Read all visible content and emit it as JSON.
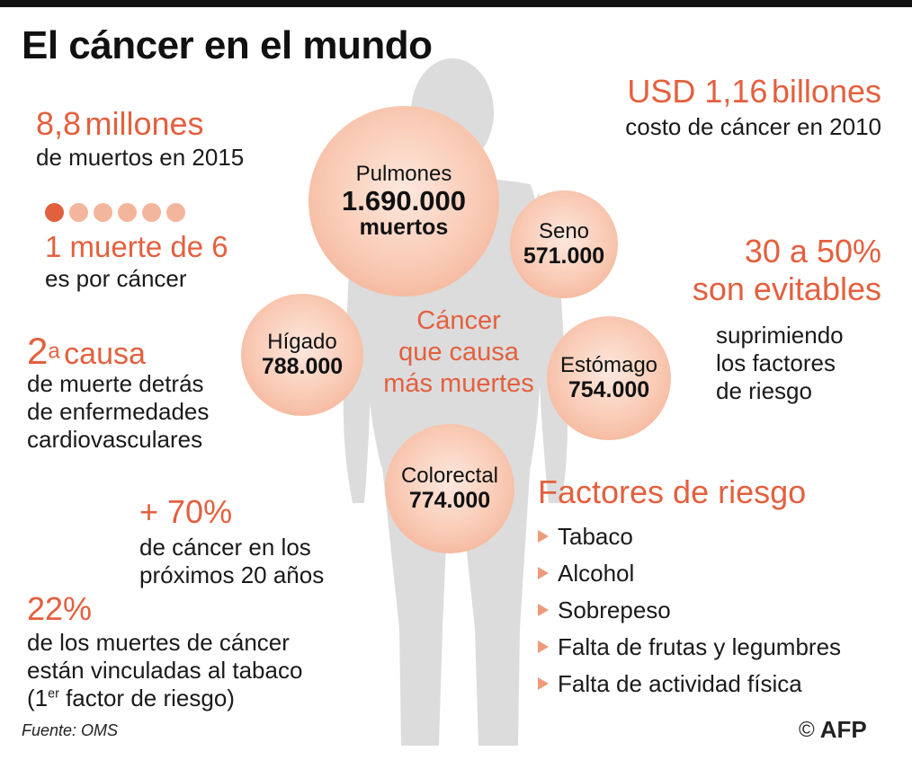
{
  "title": "El cáncer en el mundo",
  "deaths": {
    "value": "8,8",
    "unit": "millones",
    "caption": "de muertos en 2015"
  },
  "one_in_six": {
    "headline": "1 muerte de 6",
    "caption": "es por cáncer",
    "dots_total": 6,
    "dots_highlighted": 1
  },
  "second_cause": {
    "number": "2",
    "sup": "a",
    "word": "causa",
    "caption_lines": [
      "de muerte detrás",
      "de enfermedades",
      "cardiovasculares"
    ]
  },
  "growth": {
    "headline": "+ 70%",
    "caption_lines": [
      "de cáncer en los",
      "próximos 20 años"
    ]
  },
  "tobacco": {
    "headline": "22%",
    "line1": "de los muertes de cáncer",
    "line2": "están vinculadas al tabaco",
    "line3_pre": "(1",
    "line3_sup": "er",
    "line3_post": " factor de riesgo)"
  },
  "cost": {
    "headline": "USD 1,16",
    "unit": "billones",
    "caption": "costo de cáncer en 2010"
  },
  "avoidable": {
    "line1": "30 a 50%",
    "line2": "son evitables",
    "caption_lines": [
      "suprimiendo",
      "los factores",
      "de riesgo"
    ]
  },
  "center_label": [
    "Cáncer",
    "que causa",
    "más muertes"
  ],
  "cancers": {
    "pulmones": {
      "name": "Pulmones",
      "value": "1.690.000",
      "unit": "muertos"
    },
    "seno": {
      "name": "Seno",
      "value": "571.000"
    },
    "higado": {
      "name": "Hígado",
      "value": "788.000"
    },
    "estomago": {
      "name": "Estómago",
      "value": "754.000"
    },
    "colorectal": {
      "name": "Colorectal",
      "value": "774.000"
    }
  },
  "risk_factors": {
    "title": "Factores de riesgo",
    "items": [
      "Tabaco",
      "Alcohol",
      "Sobrepeso",
      "Falta de frutas y legumbres",
      "Falta de actividad física"
    ]
  },
  "source": "Fuente: OMS",
  "credit": {
    "copyright": "©",
    "agency": "AFP"
  },
  "colors": {
    "accent": "#e3603f",
    "bubble": "#f9c9b3",
    "silhouette": "#dcdcdc"
  }
}
